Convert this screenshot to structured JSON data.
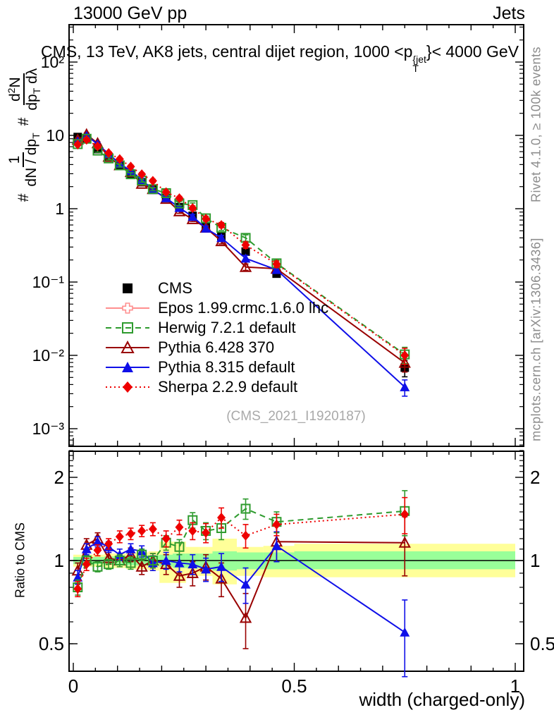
{
  "meta": {
    "header_left": "13000 GeV pp",
    "header_right": "Jets",
    "title_prefix": "CMS, 13 TeV, AK8 jets, central dijet region, 1000 <p",
    "title_sup": "{jet",
    "title_sub": "T",
    "title_suffix": "}< 4000 GeV",
    "rivet_text": "Rivet 4.1.0, ≥ 100k events",
    "mcplots_text": "mcplots.cern.ch [arXiv:1306.3436]",
    "watermark": "(CMS_2021_I1920187)"
  },
  "ylabel": {
    "hash1": "#",
    "f1_num": "1",
    "f1_den_a": "dN / dp",
    "f1_den_sub": "T",
    "hash2": "#",
    "f2_num_a": "d",
    "f2_num_sup": "2",
    "f2_num_b": "N",
    "f2_den_a": "dp",
    "f2_den_sub": "T",
    "f2_den_b": " dλ"
  },
  "ratio_ylabel": "Ratio to CMS",
  "chart_data": {
    "type": "line",
    "title": "CMS, 13 TeV, AK8 jets, central dijet region, 1000 <p_T^{jet}< 4000 GeV",
    "xlabel": "width (charged-only)",
    "ylabel_top": "# 1/(dN/dp_T) # d2N/(dp_T dlambda)",
    "ylabel_bottom": "Ratio to CMS",
    "x_axis": {
      "min": 0,
      "max": 1,
      "major_ticks": [
        0,
        0.5,
        1
      ],
      "major_labels": [
        "0",
        "0.5",
        "1"
      ],
      "minor_step": 0.05
    },
    "y_main_axis": {
      "scale": "log",
      "min": 0.00057,
      "max": 320,
      "decades": [
        100,
        10,
        1,
        0.1,
        0.01,
        0.001
      ],
      "labels": [
        "10²",
        "10",
        "1",
        "10⁻¹",
        "10⁻²",
        "10⁻³"
      ]
    },
    "y_ratio_axis": {
      "scale": "log",
      "min": 0.4,
      "max": 2.59,
      "ticks": [
        2,
        1,
        0.5
      ],
      "labels": [
        "2",
        "1",
        "0.5"
      ],
      "minor": [
        0.4,
        0.5,
        0.6,
        0.7,
        0.8,
        0.9,
        1.1,
        1.2,
        1.3,
        1.4,
        1.5,
        1.6,
        1.7,
        1.8,
        1.9,
        2.1,
        2.2,
        2.3,
        2.4,
        2.5
      ],
      "ref_line": 1
    },
    "x": [
      0.01,
      0.03,
      0.055,
      0.08,
      0.105,
      0.13,
      0.155,
      0.18,
      0.21,
      0.24,
      0.27,
      0.3,
      0.335,
      0.39,
      0.46,
      0.75
    ],
    "main_rel_err": [
      0.05,
      0.05,
      0.05,
      0.05,
      0.05,
      0.05,
      0.05,
      0.05,
      0.06,
      0.06,
      0.07,
      0.07,
      0.08,
      0.1,
      0.1,
      0.25
    ],
    "series": [
      {
        "name": "CMS",
        "label": "CMS",
        "color": "#000000",
        "marker": "square-filled",
        "line": "none",
        "values": [
          9.5,
          9.0,
          6.5,
          5.0,
          3.9,
          3.0,
          2.3,
          1.85,
          1.4,
          1.05,
          0.8,
          0.58,
          0.42,
          0.26,
          0.13,
          0.0068
        ],
        "ratio": [],
        "ratio_err": []
      },
      {
        "name": "Epos",
        "label": "Epos 1.99.crmc.1.6.0 lhc",
        "color": "#ff8f8f",
        "marker": "cross-open",
        "line": "solid",
        "values": [],
        "ratio": [],
        "ratio_err": []
      },
      {
        "name": "Herwig",
        "label": "Herwig 7.2.1 default",
        "color": "#2e9b2e",
        "marker": "square-open",
        "line": "dashed",
        "values": [
          7.6,
          9.0,
          6.2,
          4.85,
          3.9,
          2.95,
          2.42,
          1.85,
          1.63,
          1.18,
          1.12,
          0.74,
          0.55,
          0.4,
          0.18,
          0.0103
        ],
        "ratio": [
          0.8,
          1.0,
          0.95,
          0.97,
          1.0,
          0.98,
          1.05,
          1.0,
          1.16,
          1.12,
          1.4,
          1.28,
          1.31,
          1.54,
          1.38,
          1.51
        ],
        "ratio_err": [
          0.05,
          0.04,
          0.04,
          0.04,
          0.05,
          0.05,
          0.05,
          0.06,
          0.07,
          0.07,
          0.09,
          0.09,
          0.12,
          0.13,
          0.12,
          0.28
        ]
      },
      {
        "name": "Pythia6",
        "label": "Pythia 6.428 370",
        "color": "#990000",
        "marker": "triangle-open",
        "line": "solid",
        "values": [
          8.7,
          10.3,
          7.8,
          5.1,
          3.9,
          3.15,
          2.18,
          1.85,
          1.36,
          0.92,
          0.72,
          0.55,
          0.36,
          0.16,
          0.152,
          0.0079
        ],
        "ratio": [
          0.92,
          1.14,
          1.2,
          1.02,
          1.0,
          1.05,
          0.95,
          1.0,
          0.97,
          0.88,
          0.9,
          0.95,
          0.86,
          0.62,
          1.17,
          1.16
        ],
        "ratio_err": [
          0.06,
          0.06,
          0.06,
          0.05,
          0.05,
          0.06,
          0.06,
          0.06,
          0.08,
          0.08,
          0.09,
          0.1,
          0.12,
          0.14,
          0.18,
          0.28
        ]
      },
      {
        "name": "Pythia8",
        "label": "Pythia 8.315 default",
        "color": "#0f0fe8",
        "marker": "triangle-filled",
        "line": "solid",
        "values": [
          8.3,
          9.9,
          7.6,
          5.6,
          4.1,
          3.3,
          2.48,
          1.81,
          1.4,
          1.03,
          0.78,
          0.54,
          0.4,
          0.21,
          0.147,
          0.0037
        ],
        "ratio": [
          0.87,
          1.1,
          1.17,
          1.12,
          1.05,
          1.1,
          1.08,
          0.98,
          1.0,
          0.98,
          0.97,
          0.93,
          0.95,
          0.82,
          1.13,
          0.55
        ],
        "ratio_err": [
          0.05,
          0.05,
          0.05,
          0.05,
          0.05,
          0.05,
          0.05,
          0.06,
          0.07,
          0.07,
          0.08,
          0.09,
          0.11,
          0.12,
          0.14,
          0.17
        ]
      },
      {
        "name": "Sherpa",
        "label": "Sherpa 2.2.9 default",
        "color": "#ee0000",
        "marker": "diamond-filled",
        "line": "dotted",
        "values": [
          7.5,
          8.7,
          7.1,
          5.75,
          4.75,
          3.75,
          2.95,
          2.4,
          1.68,
          1.39,
          1.02,
          0.73,
          0.6,
          0.32,
          0.176,
          0.01
        ],
        "ratio": [
          0.79,
          0.97,
          1.09,
          1.15,
          1.22,
          1.25,
          1.28,
          1.3,
          1.2,
          1.32,
          1.28,
          1.26,
          1.43,
          1.23,
          1.35,
          1.47
        ],
        "ratio_err": [
          0.05,
          0.05,
          0.05,
          0.05,
          0.06,
          0.06,
          0.06,
          0.07,
          0.08,
          0.08,
          0.09,
          0.1,
          0.12,
          0.12,
          0.12,
          0.22
        ]
      }
    ],
    "bands": {
      "yellow_color": "#ffff99",
      "green_color": "#99ff99",
      "edges": [
        0,
        0.02,
        0.045,
        0.07,
        0.095,
        0.12,
        0.145,
        0.17,
        0.195,
        0.225,
        0.255,
        0.285,
        0.315,
        0.37,
        0.43,
        0.5,
        1.0
      ],
      "yellow_lo": [
        0.95,
        0.95,
        0.95,
        0.94,
        0.94,
        0.93,
        0.93,
        0.92,
        0.83,
        0.83,
        0.88,
        0.88,
        0.82,
        0.88,
        0.87,
        0.87
      ],
      "yellow_hi": [
        1.05,
        1.05,
        1.05,
        1.06,
        1.06,
        1.07,
        1.07,
        1.08,
        1.17,
        1.17,
        1.12,
        1.12,
        1.2,
        1.12,
        1.13,
        1.15
      ],
      "green_lo": [
        0.97,
        0.97,
        0.97,
        0.965,
        0.96,
        0.96,
        0.96,
        0.955,
        0.95,
        0.94,
        0.94,
        0.94,
        0.92,
        0.93,
        0.93,
        0.93
      ],
      "green_hi": [
        1.03,
        1.03,
        1.03,
        1.035,
        1.04,
        1.04,
        1.04,
        1.045,
        1.05,
        1.06,
        1.06,
        1.06,
        1.08,
        1.07,
        1.07,
        1.08
      ]
    },
    "legend_position": "center-left"
  }
}
